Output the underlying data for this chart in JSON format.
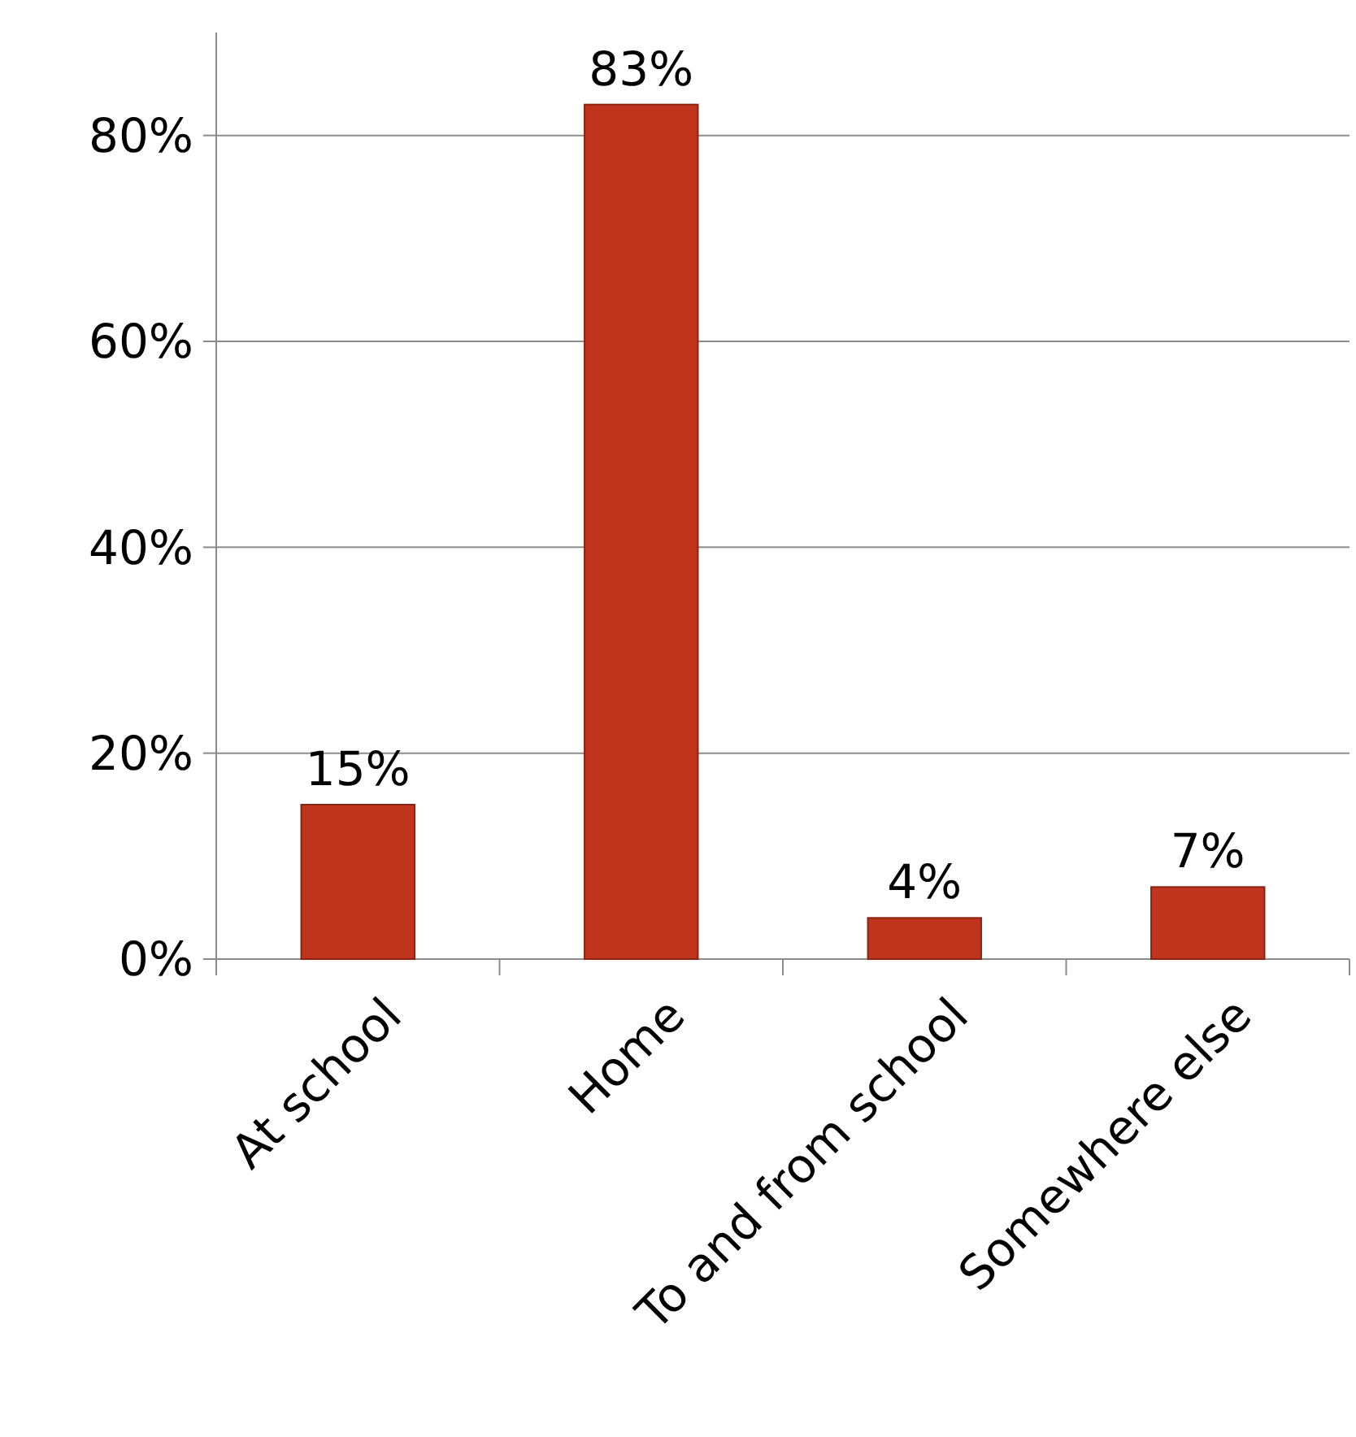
{
  "chart_data": {
    "type": "bar",
    "categories": [
      "At school",
      "Home",
      "To and from school",
      "Somewhere else"
    ],
    "values": [
      15,
      83,
      4,
      7
    ],
    "value_labels": [
      "15%",
      "83%",
      "4%",
      "7%"
    ],
    "color": "#c0341d",
    "ylim": [
      0,
      90
    ],
    "yticks": [
      {
        "value": 0,
        "label": "0%"
      },
      {
        "value": 20,
        "label": "20%"
      },
      {
        "value": 40,
        "label": "40%"
      },
      {
        "value": 60,
        "label": "60%"
      },
      {
        "value": 80,
        "label": "80%"
      }
    ],
    "grid": "y"
  }
}
